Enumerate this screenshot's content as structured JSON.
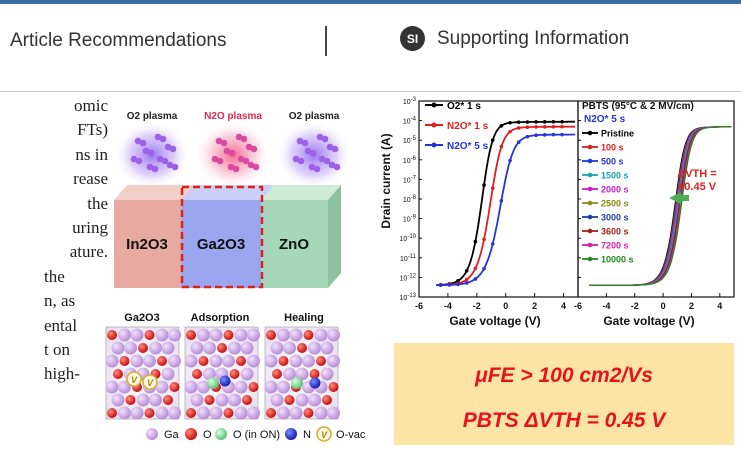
{
  "tabs": {
    "article_recommendations": "Article Recommendations",
    "supporting_information": "Supporting Information",
    "si_badge": "SI"
  },
  "body_lines": [
    "omic",
    "FTs)",
    "ns in",
    "rease",
    "the",
    "uring",
    "ature.",
    "the",
    "n, as",
    "ental",
    "t on",
    "high-"
  ],
  "toc": {
    "plasma_labels": [
      "O2 plasma",
      "N2O plasma",
      "O2 plasma"
    ],
    "layers": [
      "In2O3",
      "Ga2O3",
      "ZnO"
    ],
    "panel_titles": [
      "Ga2O3",
      "Adsorption",
      "Healing"
    ],
    "vac_label": "V",
    "legend": {
      "ga": "Ga",
      "o": "O",
      "o_in_on": "O (in ON)",
      "n": "N",
      "o_vac": "O-vac",
      "vac_symbol": "V"
    },
    "highlight_mu": "μFE > 100 cm2/Vs",
    "highlight_pbts": "PBTS ΔVTH = 0.45 V"
  },
  "colors": {
    "accent": "#3b6ea5",
    "in2o3": "#e7a9a0",
    "ga2o3": "#9aa7ef",
    "zno": "#a6d7b8",
    "n2o_text": "#e0264a",
    "highlight_bg": "#fce3a6",
    "highlight_text": "#e8121b",
    "ga_atom": "#c9a3e3",
    "o_atom": "#e0201e",
    "oon_atom": "#8ede9a",
    "n_atom": "#2534d8",
    "vac_ring": "#d8b03a"
  },
  "chart_data": [
    {
      "type": "line",
      "title": "",
      "xlabel": "Gate voltage (V)",
      "ylabel": "Drain current (A)",
      "xlim": [
        -6,
        5
      ],
      "x_ticks": [
        -6,
        -4,
        -2,
        0,
        2,
        4
      ],
      "ylim_log10": [
        -13,
        -3
      ],
      "y_ticks": [
        "10-13",
        "10-12",
        "10-11",
        "10-10",
        "10-9",
        "10-8",
        "10-7",
        "10-6",
        "10-5",
        "10-4",
        "10-3"
      ],
      "legend_position": "top-left",
      "series": [
        {
          "name": "O2* 1 s",
          "color": "#000000",
          "vth": -1.5,
          "ion_log": -4.1,
          "ss": 0.35
        },
        {
          "name": "N2O* 1 s",
          "color": "#e0201e",
          "vth": -0.9,
          "ion_log": -4.35,
          "ss": 0.38
        },
        {
          "name": "N2O* 5 s",
          "color": "#2534d8",
          "vth": -0.2,
          "ion_log": -4.75,
          "ss": 0.42
        }
      ]
    },
    {
      "type": "line",
      "title": "PBTS (95°C & 2 MV/cm)",
      "subtitle": "N2O* 5 s",
      "xlabel": "Gate voltage (V)",
      "ylabel": "",
      "xlim": [
        -6,
        5
      ],
      "x_ticks": [
        -6,
        -4,
        -2,
        0,
        2,
        4
      ],
      "ylim_log10": [
        -13,
        -3
      ],
      "legend_position": "left",
      "annotation": "ΔVTH = +0.45 V",
      "series": [
        {
          "name": "Pristine",
          "color": "#000000",
          "shift": 0.0
        },
        {
          "name": "100 s",
          "color": "#e0201e",
          "shift": 0.05
        },
        {
          "name": "500 s",
          "color": "#2534d8",
          "shift": 0.1
        },
        {
          "name": "1500 s",
          "color": "#1aa6a6",
          "shift": 0.15
        },
        {
          "name": "2000 s",
          "color": "#c81ec8",
          "shift": 0.2
        },
        {
          "name": "2500 s",
          "color": "#8a8a14",
          "shift": 0.25
        },
        {
          "name": "3000 s",
          "color": "#1e3ea0",
          "shift": 0.3
        },
        {
          "name": "3600 s",
          "color": "#a0201e",
          "shift": 0.35
        },
        {
          "name": "7200 s",
          "color": "#e0209a",
          "shift": 0.4
        },
        {
          "name": "10000 s",
          "color": "#1e8a1e",
          "shift": 0.45
        }
      ],
      "vth_base": 1.0,
      "ion_log": -4.35,
      "ss": 0.33
    }
  ]
}
